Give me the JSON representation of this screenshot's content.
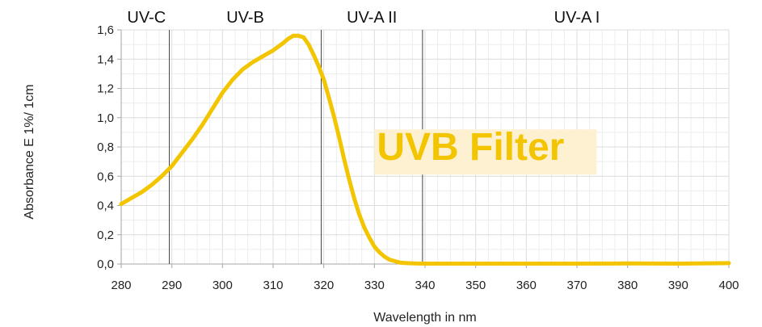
{
  "chart_data": {
    "type": "line",
    "title": "",
    "xlabel": "Wavelength in nm",
    "ylabel": "Absorbance E 1%/ 1cm",
    "xlim": [
      280,
      400
    ],
    "ylim": [
      0.0,
      1.6
    ],
    "x_ticks": [
      280,
      290,
      300,
      310,
      320,
      330,
      340,
      350,
      360,
      370,
      380,
      390,
      400
    ],
    "x_tick_labels": [
      "280",
      "290",
      "300",
      "310",
      "320",
      "330",
      "340",
      "350",
      "360",
      "370",
      "380",
      "390",
      "400"
    ],
    "y_ticks": [
      0.0,
      0.2,
      0.4,
      0.6,
      0.8,
      1.0,
      1.2,
      1.4,
      1.6
    ],
    "y_tick_labels": [
      "0,0",
      "0,2",
      "0,4",
      "0,6",
      "0,8",
      "1,0",
      "1,2",
      "1,4",
      "1,6"
    ],
    "grid": true,
    "series": [
      {
        "color": "#f2c500",
        "x": [
          280,
          282,
          284,
          286,
          288,
          290,
          292,
          294,
          296,
          298,
          300,
          302,
          304,
          306,
          308,
          310,
          312,
          313,
          314,
          315,
          316,
          317,
          318,
          319,
          320,
          321,
          322,
          323,
          324,
          325,
          326,
          327,
          328,
          329,
          330,
          331,
          332,
          333,
          334,
          335,
          336,
          338,
          340,
          345,
          350,
          360,
          370,
          380,
          390,
          400
        ],
        "y": [
          0.41,
          0.45,
          0.49,
          0.54,
          0.6,
          0.67,
          0.76,
          0.85,
          0.95,
          1.06,
          1.17,
          1.26,
          1.33,
          1.38,
          1.42,
          1.46,
          1.51,
          1.54,
          1.56,
          1.56,
          1.55,
          1.5,
          1.43,
          1.35,
          1.26,
          1.14,
          1.01,
          0.87,
          0.72,
          0.58,
          0.45,
          0.34,
          0.25,
          0.18,
          0.12,
          0.08,
          0.05,
          0.03,
          0.02,
          0.01,
          0.007,
          0.004,
          0.003,
          0.003,
          0.003,
          0.003,
          0.003,
          0.004,
          0.003,
          0.006
        ]
      }
    ],
    "region_dividers": [
      289.5,
      319.5,
      339.5
    ],
    "region_labels": [
      {
        "text": "UV-C",
        "x": 285
      },
      {
        "text": "UV-B",
        "x": 304.5
      },
      {
        "text": "UV-A II",
        "x": 329.5
      },
      {
        "text": "UV-A I",
        "x": 370
      }
    ],
    "annotation": {
      "text": "UVB Filter",
      "text_color": "#f2c500",
      "box_color": "#fdf1d2"
    }
  }
}
